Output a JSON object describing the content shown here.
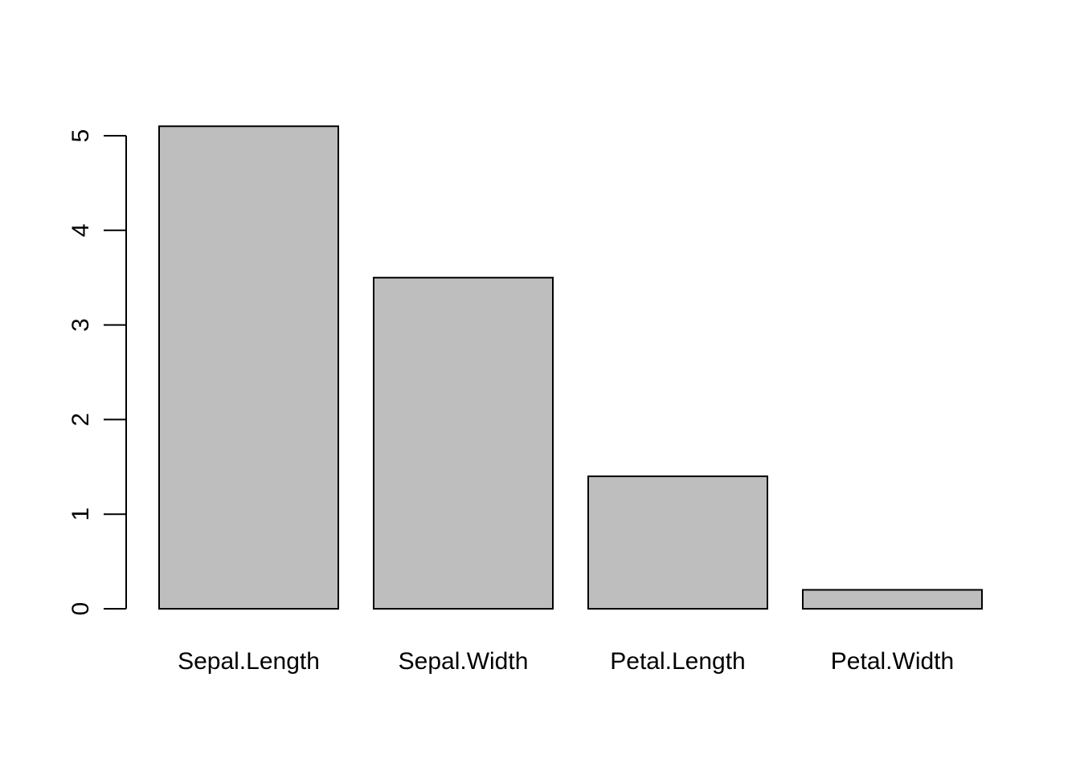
{
  "chart_data": {
    "type": "bar",
    "title": "",
    "xlabel": "",
    "ylabel": "",
    "categories": [
      "Sepal.Length",
      "Sepal.Width",
      "Petal.Length",
      "Petal.Width"
    ],
    "values": [
      5.1,
      3.5,
      1.4,
      0.2
    ],
    "ylim": [
      0,
      5
    ],
    "y_ticks": [
      "0",
      "1",
      "2",
      "3",
      "4",
      "5"
    ],
    "grid": false,
    "legend": "none",
    "colors": {
      "bar_fill": "#bebebe",
      "bar_stroke": "#000000",
      "axis": "#000000",
      "background": "#ffffff"
    }
  }
}
